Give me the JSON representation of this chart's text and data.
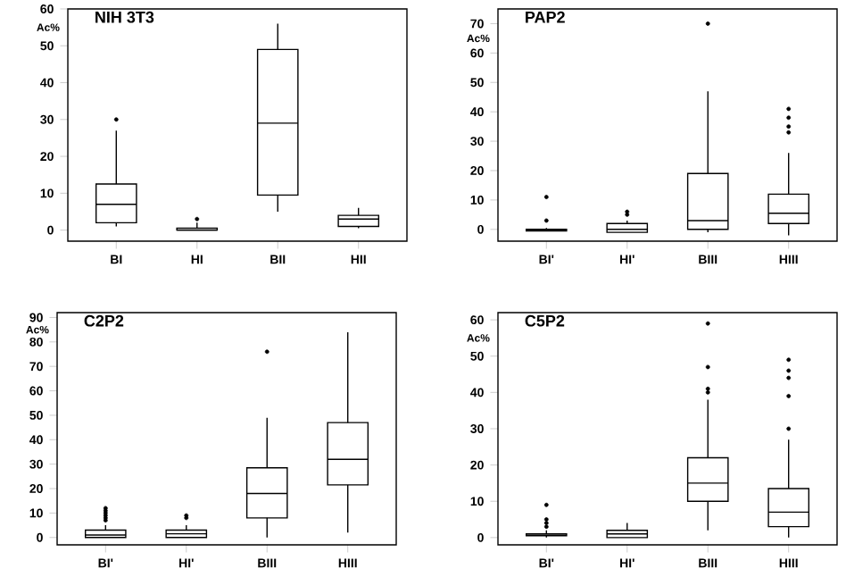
{
  "chart_data": [
    {
      "type": "box",
      "title": "NIH 3T3",
      "ylabel": "Ac%",
      "categories": [
        "BI",
        "HI",
        "BII",
        "HII"
      ],
      "ylim": [
        -3,
        60
      ],
      "yticks": [
        0,
        10,
        20,
        30,
        40,
        50,
        60
      ],
      "boxes": [
        {
          "low": 1,
          "q1": 2,
          "median": 7,
          "q3": 12.5,
          "high": 27,
          "outliers": [
            30
          ]
        },
        {
          "low": 0,
          "q1": 0,
          "median": 0,
          "q3": 0.5,
          "high": 2,
          "outliers": [
            3
          ]
        },
        {
          "low": 5,
          "q1": 9.5,
          "median": 29,
          "q3": 49,
          "high": 56
        },
        {
          "low": 0.5,
          "q1": 1,
          "median": 3,
          "q3": 4,
          "high": 6
        }
      ]
    },
    {
      "type": "box",
      "title": "PAP2",
      "ylabel": "Ac%",
      "categories": [
        "BI'",
        "HI'",
        "BIII",
        "HIII"
      ],
      "ylim": [
        -4,
        75
      ],
      "yticks": [
        0,
        10,
        20,
        30,
        40,
        50,
        60,
        70
      ],
      "boxes": [
        {
          "low": -0.5,
          "q1": -0.5,
          "median": 0,
          "q3": 0,
          "high": 0.5,
          "outliers": [
            3,
            11
          ]
        },
        {
          "low": -1,
          "q1": -1,
          "median": 0,
          "q3": 2,
          "high": 3,
          "outliers": [
            5,
            6
          ]
        },
        {
          "low": -1,
          "q1": 0,
          "median": 3,
          "q3": 19,
          "high": 47,
          "outliers": [
            70
          ]
        },
        {
          "low": -2,
          "q1": 2,
          "median": 5.5,
          "q3": 12,
          "high": 26,
          "outliers": [
            33,
            35,
            38,
            41
          ]
        }
      ]
    },
    {
      "type": "box",
      "title": "C2P2",
      "ylabel": "Ac%",
      "categories": [
        "BI'",
        "HI'",
        "BIII",
        "HIII"
      ],
      "ylim": [
        -3,
        92
      ],
      "yticks": [
        0,
        10,
        20,
        30,
        40,
        50,
        60,
        70,
        80,
        90
      ],
      "boxes": [
        {
          "low": 0,
          "q1": 0,
          "median": 1,
          "q3": 3,
          "high": 5,
          "outliers": [
            7,
            8,
            9,
            10,
            11,
            12
          ]
        },
        {
          "low": 0,
          "q1": 0,
          "median": 1.5,
          "q3": 3,
          "high": 5,
          "outliers": [
            8,
            9
          ]
        },
        {
          "low": 0,
          "q1": 8,
          "median": 18,
          "q3": 28.5,
          "high": 49,
          "outliers": [
            76
          ]
        },
        {
          "low": 2,
          "q1": 21.5,
          "median": 32,
          "q3": 47,
          "high": 84
        }
      ]
    },
    {
      "type": "box",
      "title": "C5P2",
      "ylabel": "Ac%",
      "categories": [
        "BI'",
        "HI'",
        "BIII",
        "HIII"
      ],
      "ylim": [
        -2,
        62
      ],
      "yticks": [
        0,
        10,
        20,
        30,
        40,
        50,
        60
      ],
      "boxes": [
        {
          "low": 0,
          "q1": 0.5,
          "median": 1,
          "q3": 1,
          "high": 2,
          "outliers": [
            3,
            4,
            5,
            9
          ]
        },
        {
          "low": 0,
          "q1": 0,
          "median": 1,
          "q3": 2,
          "high": 4
        },
        {
          "low": 2,
          "q1": 10,
          "median": 15,
          "q3": 22,
          "high": 38,
          "outliers": [
            40,
            41,
            47,
            59
          ]
        },
        {
          "low": 0,
          "q1": 3,
          "median": 7,
          "q3": 13.5,
          "high": 27,
          "outliers": [
            30,
            39,
            44,
            46,
            49
          ]
        }
      ]
    }
  ]
}
